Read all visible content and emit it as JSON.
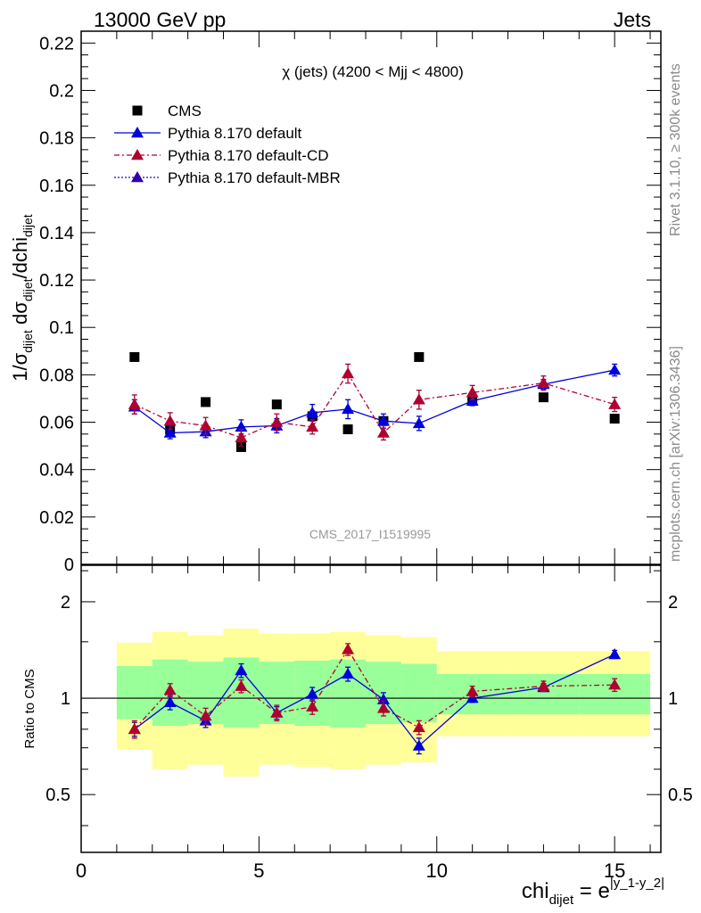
{
  "header": {
    "left": "13000 GeV pp",
    "right": "Jets"
  },
  "side_labels": {
    "top": "Rivet 3.1.10, ≥ 300k events",
    "bottom": "mcplots.cern.ch [arXiv:1306.3436]"
  },
  "chart_data": [
    {
      "type": "scatter",
      "title": "χ (jets) (4200 < Mjj < 4800)",
      "ylabel": "1/σdijet dσdijet/dchidijet",
      "watermark": "CMS_2017_I1519995",
      "xlim": [
        0,
        16.3
      ],
      "ylim": [
        0,
        0.225
      ],
      "yticks": [
        "0",
        "0.02",
        "0.04",
        "0.06",
        "0.08",
        "0.1",
        "0.12",
        "0.14",
        "0.16",
        "0.18",
        "0.2",
        "0.22"
      ],
      "legend_position": "top-left",
      "series": [
        {
          "name": "CMS",
          "color": "#000000",
          "marker": "square",
          "x": [
            1.5,
            2.5,
            3.5,
            4.5,
            5.5,
            6.5,
            7.5,
            8.5,
            9.5,
            11,
            13,
            15
          ],
          "y": [
            0.0875,
            0.057,
            0.0685,
            0.0495,
            0.0675,
            0.0625,
            0.057,
            0.0605,
            0.0875,
            0.069,
            0.0705,
            0.0615
          ]
        },
        {
          "name": "Pythia 8.170 default",
          "color": "#0000dd",
          "marker": "triangle",
          "line": "solid",
          "x": [
            1.5,
            2.5,
            3.5,
            4.5,
            5.5,
            6.5,
            7.5,
            8.5,
            9.5,
            11,
            13,
            15
          ],
          "y": [
            0.0665,
            0.0555,
            0.056,
            0.058,
            0.0585,
            0.064,
            0.0655,
            0.0605,
            0.0595,
            0.069,
            0.076,
            0.082
          ],
          "err": [
            0.003,
            0.0025,
            0.0025,
            0.003,
            0.003,
            0.0035,
            0.004,
            0.003,
            0.003,
            0.002,
            0.002,
            0.0025
          ]
        },
        {
          "name": "Pythia 8.170 default-CD",
          "color": "#b00030",
          "marker": "triangle",
          "line": "dashdot",
          "x": [
            1.5,
            2.5,
            3.5,
            4.5,
            5.5,
            6.5,
            7.5,
            8.5,
            9.5,
            11,
            13,
            15
          ],
          "y": [
            0.0675,
            0.0605,
            0.0585,
            0.0535,
            0.06,
            0.058,
            0.0805,
            0.0555,
            0.0695,
            0.0725,
            0.0765,
            0.0675
          ],
          "err": [
            0.004,
            0.0035,
            0.0035,
            0.0035,
            0.0035,
            0.003,
            0.004,
            0.003,
            0.004,
            0.003,
            0.003,
            0.003
          ]
        },
        {
          "name": "Pythia 8.170 default-MBR",
          "color": "#3000b0",
          "marker": "triangle",
          "line": "dotted",
          "x": [],
          "y": []
        }
      ]
    },
    {
      "type": "scatter",
      "ylabel": "Ratio to CMS",
      "xlabel": "chidijet = e|y_1-y_2|",
      "xlim": [
        0,
        16.3
      ],
      "ylim": [
        0.33,
        2.6
      ],
      "log_y": true,
      "yticks_right": [
        "0.5",
        "1",
        "2"
      ],
      "yticks_left": [
        "0.5",
        "1",
        "2"
      ],
      "xticks": [
        "0",
        "5",
        "10",
        "15"
      ],
      "reference_line": 1,
      "bands": {
        "bins": [
          [
            1,
            2
          ],
          [
            2,
            3
          ],
          [
            3,
            4
          ],
          [
            4,
            5
          ],
          [
            5,
            6
          ],
          [
            6,
            7
          ],
          [
            7,
            8
          ],
          [
            8,
            9
          ],
          [
            9,
            10
          ],
          [
            10,
            12
          ],
          [
            12,
            14
          ],
          [
            14,
            16
          ]
        ],
        "yellow_lo": [
          0.69,
          0.6,
          0.62,
          0.57,
          0.62,
          0.61,
          0.6,
          0.62,
          0.63,
          0.76,
          0.76,
          0.76
        ],
        "yellow_hi": [
          1.49,
          1.61,
          1.57,
          1.65,
          1.59,
          1.59,
          1.61,
          1.57,
          1.55,
          1.4,
          1.4,
          1.4
        ],
        "green_lo": [
          0.86,
          0.82,
          0.83,
          0.81,
          0.83,
          0.82,
          0.81,
          0.83,
          0.84,
          0.89,
          0.89,
          0.89
        ],
        "green_hi": [
          1.26,
          1.32,
          1.3,
          1.34,
          1.3,
          1.31,
          1.32,
          1.3,
          1.28,
          1.19,
          1.19,
          1.19
        ]
      },
      "series": [
        {
          "name": "Pythia 8.170 default",
          "color": "#0000dd",
          "line": "solid",
          "x": [
            1.5,
            2.5,
            3.5,
            4.5,
            5.5,
            6.5,
            7.5,
            8.5,
            9.5,
            11,
            13,
            15
          ],
          "y": [
            0.8,
            0.97,
            0.85,
            1.22,
            0.9,
            1.03,
            1.19,
            0.99,
            0.71,
            1.0,
            1.08,
            1.37
          ],
          "err": [
            0.04,
            0.05,
            0.04,
            0.06,
            0.04,
            0.05,
            0.06,
            0.05,
            0.04,
            0.03,
            0.03,
            0.04
          ]
        },
        {
          "name": "Pythia 8.170 default-CD",
          "color": "#b00030",
          "line": "dashdot",
          "x": [
            1.5,
            2.5,
            3.5,
            4.5,
            5.5,
            6.5,
            7.5,
            8.5,
            9.5,
            11,
            13,
            15
          ],
          "y": [
            0.8,
            1.06,
            0.88,
            1.09,
            0.9,
            0.94,
            1.42,
            0.93,
            0.81,
            1.05,
            1.09,
            1.1
          ],
          "err": [
            0.05,
            0.05,
            0.05,
            0.05,
            0.05,
            0.05,
            0.06,
            0.05,
            0.04,
            0.04,
            0.04,
            0.05
          ]
        }
      ]
    }
  ]
}
